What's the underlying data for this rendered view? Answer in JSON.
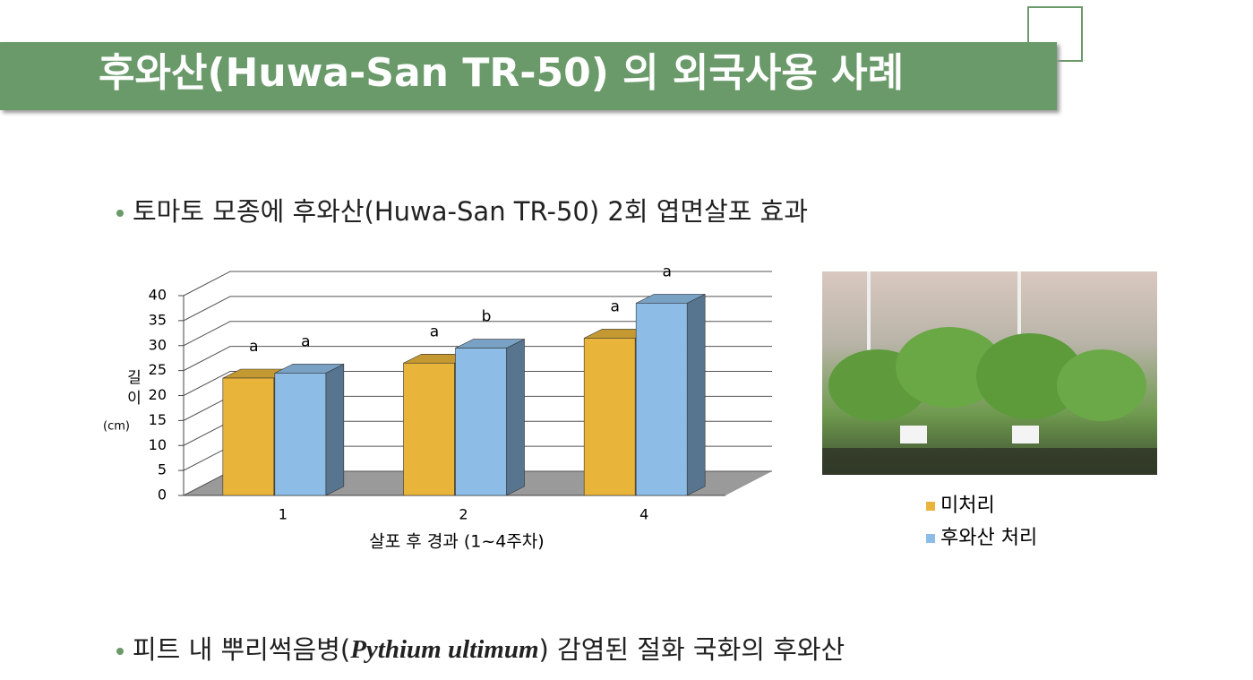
{
  "header": {
    "title": "후와산(Huwa-San TR-50) 의 외국사용 사례"
  },
  "bullets": [
    {
      "text": "토마토 모종에 후와산(Huwa-San TR-50) 2회 엽면살포 효과"
    },
    {
      "before": "피트 내 뿌리썩음병(",
      "italic": "Pythium ultimum",
      "after": ") 감염된 절화 국화의 후와산"
    }
  ],
  "chart_data": {
    "type": "bar3d",
    "y_label_lines": [
      "길",
      "이"
    ],
    "y_unit": "(cm)",
    "x_label": "살포 후 경과 (1~4주차)",
    "categories": [
      "1",
      "2",
      "4"
    ],
    "series": [
      {
        "name": "미처리",
        "color": "#e8b43a",
        "values": [
          23.5,
          26.5,
          31.5
        ],
        "significance": [
          "a",
          "a",
          "a"
        ]
      },
      {
        "name": "후와산 처리",
        "color": "#8dbde6",
        "values": [
          24.5,
          29.5,
          38.5
        ],
        "significance": [
          "a",
          "b",
          "a"
        ]
      }
    ],
    "ylim": [
      0,
      40
    ],
    "yticks": [
      0,
      5,
      10,
      15,
      20,
      25,
      30,
      35,
      40
    ],
    "grid": true
  }
}
